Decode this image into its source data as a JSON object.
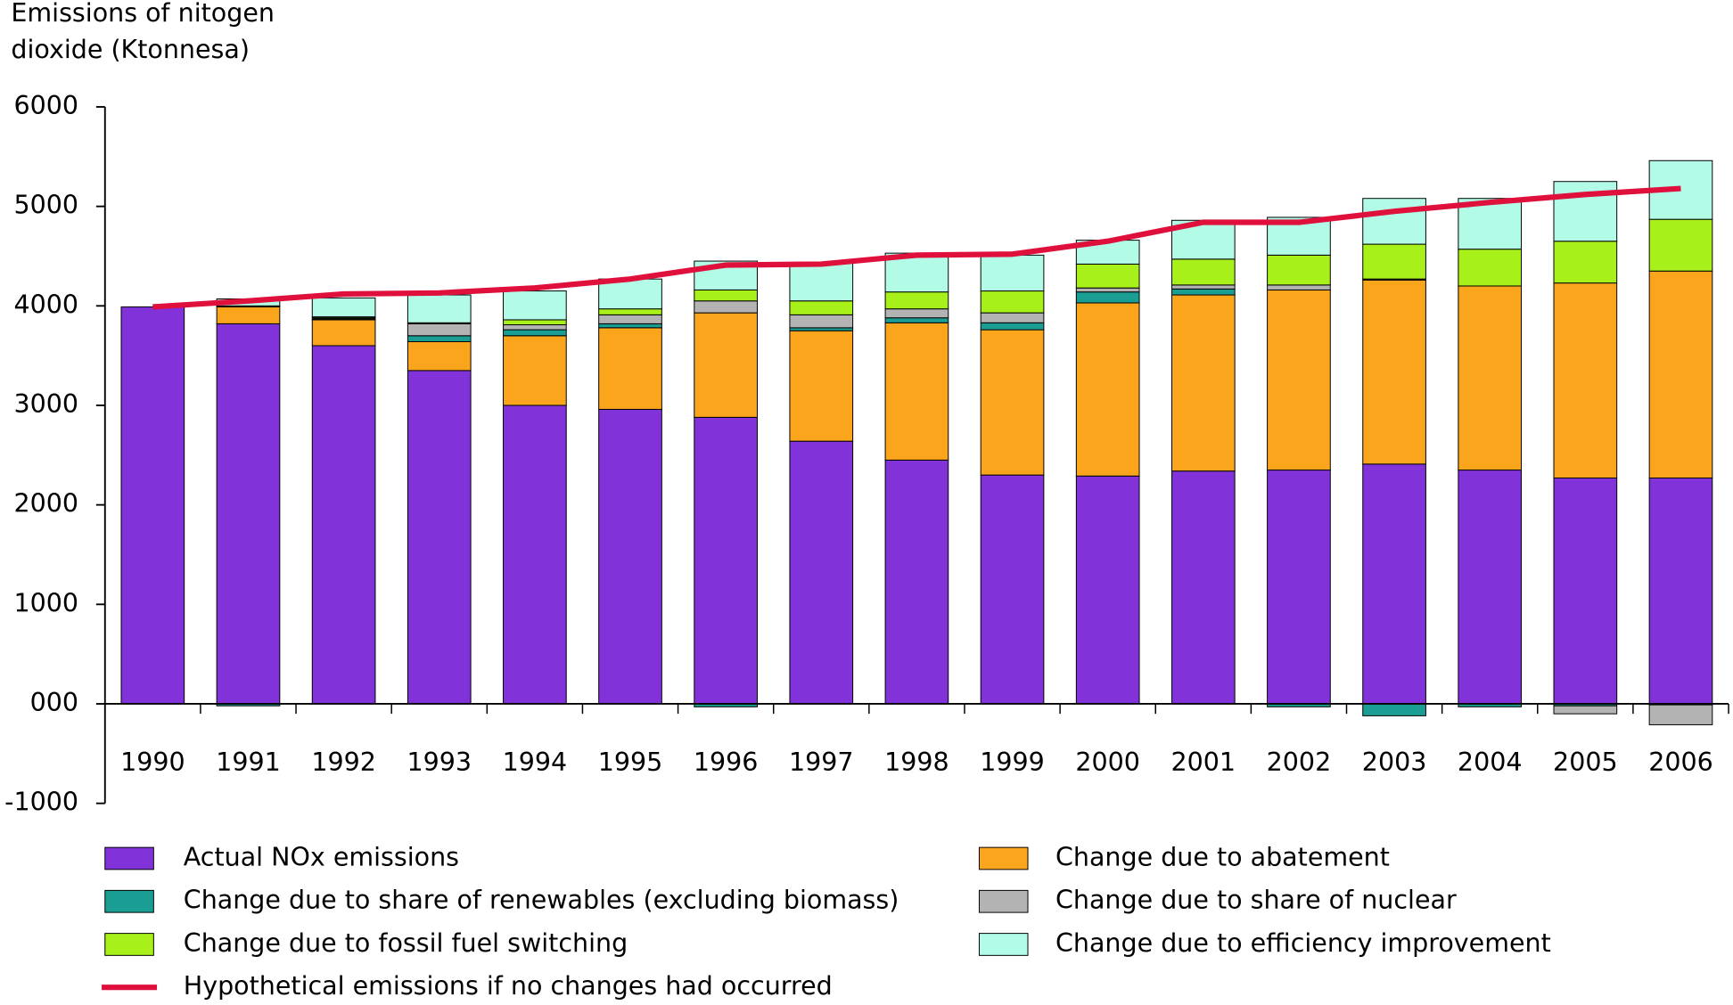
{
  "chart_data": {
    "type": "stacked-bar-line",
    "y_label": [
      "Emissions of nitogen",
      "dioxide (Ktonnesa)"
    ],
    "categories": [
      "1990",
      "1991",
      "1992",
      "1993",
      "1994",
      "1995",
      "1996",
      "1997",
      "1998",
      "1999",
      "2000",
      "2001",
      "2002",
      "2003",
      "2004",
      "2005",
      "2006"
    ],
    "series": [
      {
        "name": "Actual NOx emissions",
        "color": "#8133d9",
        "values": [
          3990,
          3820,
          3600,
          3350,
          3000,
          2960,
          2880,
          2640,
          2450,
          2300,
          2290,
          2340,
          2350,
          2410,
          2350,
          2270,
          2270
        ]
      },
      {
        "name": "Change due to abatement",
        "color": "#fba51d",
        "values": [
          0,
          170,
          260,
          290,
          700,
          820,
          1050,
          1110,
          1380,
          1460,
          1740,
          1770,
          1810,
          1850,
          1850,
          1960,
          2080
        ]
      },
      {
        "name": "Change due to share of renewables (excluding biomass)",
        "color": "#1a9e94",
        "values": [
          0,
          -20,
          10,
          60,
          60,
          40,
          -30,
          30,
          50,
          70,
          110,
          60,
          -30,
          -120,
          -30,
          -20,
          -10
        ]
      },
      {
        "name": "Change due to share of nuclear",
        "color": "#b3b3b3",
        "values": [
          0,
          0,
          10,
          120,
          50,
          90,
          120,
          130,
          90,
          100,
          40,
          40,
          50,
          10,
          0,
          -80,
          -200
        ]
      },
      {
        "name": "Change due to fossil fuel switching",
        "color": "#a7f01a",
        "values": [
          0,
          10,
          10,
          10,
          50,
          60,
          110,
          140,
          170,
          220,
          240,
          260,
          300,
          350,
          370,
          420,
          520
        ]
      },
      {
        "name": "Change due to efficiency improvement",
        "color": "#b2fbe7",
        "values": [
          0,
          70,
          190,
          280,
          290,
          300,
          290,
          380,
          390,
          360,
          240,
          390,
          380,
          460,
          510,
          600,
          590
        ]
      },
      {
        "name": "Hypothetical emissions if no changes had occurred",
        "color": "#e0103c",
        "type": "line",
        "values": [
          3990,
          4050,
          4120,
          4130,
          4180,
          4270,
          4410,
          4420,
          4510,
          4520,
          4650,
          4840,
          4840,
          4950,
          5040,
          5120,
          5180
        ]
      }
    ],
    "ylim": [
      -1000,
      6000
    ],
    "yticks": [
      {
        "value": -1000,
        "label": "-1000"
      },
      {
        "value": 0,
        "label": "000"
      },
      1000,
      2000,
      3000,
      4000,
      5000,
      6000
    ]
  }
}
